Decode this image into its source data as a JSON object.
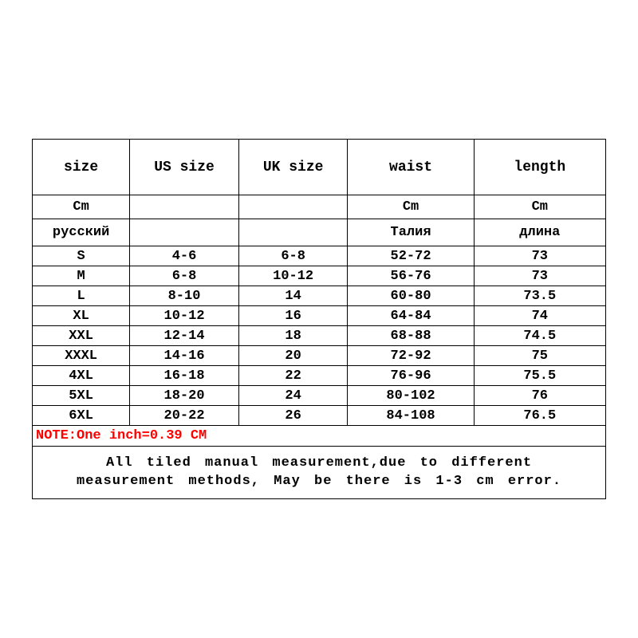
{
  "size_chart": {
    "type": "table",
    "background_color": "#ffffff",
    "border_color": "#000000",
    "text_color": "#000000",
    "note_color": "#ff0000",
    "font_family": "Courier New, monospace",
    "base_fontsize": 17,
    "header_fontsize": 18,
    "column_widths_pct": [
      17,
      19,
      19,
      22,
      23
    ],
    "headers": [
      "size",
      "US size",
      "UK size",
      "waist",
      "length"
    ],
    "unit_row": [
      "Cm",
      "",
      "",
      "Cm",
      "Cm"
    ],
    "russian_row": [
      "русский",
      "",
      "",
      "Талия",
      "длина"
    ],
    "rows": [
      [
        "S",
        "4-6",
        "6-8",
        "52-72",
        "73"
      ],
      [
        "M",
        "6-8",
        "10-12",
        "56-76",
        "73"
      ],
      [
        "L",
        "8-10",
        "14",
        "60-80",
        "73.5"
      ],
      [
        "XL",
        "10-12",
        "16",
        "64-84",
        "74"
      ],
      [
        "XXL",
        "12-14",
        "18",
        "68-88",
        "74.5"
      ],
      [
        "XXXL",
        "14-16",
        "20",
        "72-92",
        "75"
      ],
      [
        "4XL",
        "16-18",
        "22",
        "76-96",
        "75.5"
      ],
      [
        "5XL",
        "18-20",
        "24",
        "80-102",
        "76"
      ],
      [
        "6XL",
        "20-22",
        "26",
        "84-108",
        "76.5"
      ]
    ],
    "note": "NOTE:One inch=0.39 CM",
    "footer": "All tiled manual measurement,due to different measurement methods, May be there is 1-3 cm error."
  }
}
